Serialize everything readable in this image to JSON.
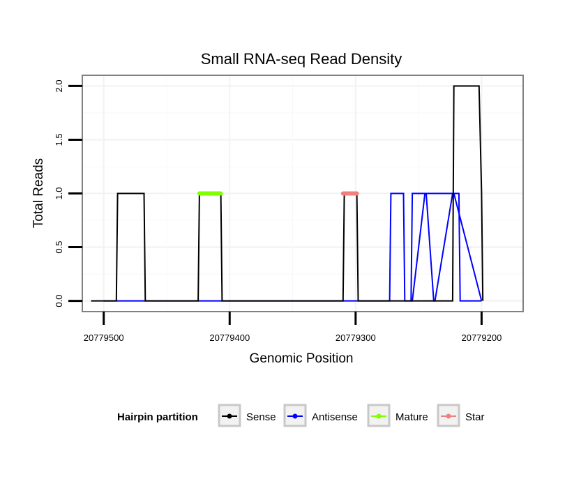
{
  "chart_data": {
    "type": "line",
    "title": "Small RNA-seq Read Density",
    "xlabel": "Genomic Position",
    "ylabel": "Total Reads",
    "x_reversed": true,
    "xlim": [
      20779517,
      20779167
    ],
    "ylim": [
      -0.1,
      2.1
    ],
    "x_ticks": [
      20779500,
      20779400,
      20779300,
      20779200
    ],
    "x_tick_labels": [
      "20779500",
      "20779400",
      "20779300",
      "20779200"
    ],
    "y_ticks": [
      0.0,
      0.5,
      1.0,
      1.5,
      2.0
    ],
    "y_tick_labels": [
      "0.0",
      "0.5",
      "1.0",
      "1.5",
      "2.0"
    ],
    "grid": true,
    "legend": {
      "title": "Hairpin partition",
      "position": "bottom",
      "entries": [
        {
          "label": "Sense",
          "color": "#000000"
        },
        {
          "label": "Antisense",
          "color": "#0000ff"
        },
        {
          "label": "Mature",
          "color": "#7fff00"
        },
        {
          "label": "Star",
          "color": "#f08080"
        }
      ]
    },
    "series": [
      {
        "name": "Antisense",
        "color": "#0000ff",
        "x": [
          20779500,
          20779273,
          20779272,
          20779262,
          20779261,
          20779256,
          20779255,
          20779218,
          20779217,
          20779200
        ],
        "y": [
          0,
          0,
          1,
          1,
          0,
          0,
          1,
          1,
          0,
          0
        ]
      },
      {
        "name": "Antisense",
        "color": "#0000ff",
        "x": [
          20779256,
          20779255,
          20779245,
          20779244,
          20779238,
          20779237,
          20779223,
          20779222,
          20779200
        ],
        "y": [
          0,
          0,
          1,
          1,
          0,
          0,
          1,
          1,
          0
        ]
      },
      {
        "name": "Sense",
        "color": "#000000",
        "x": [
          20779510,
          20779490,
          20779489,
          20779468,
          20779467,
          20779425,
          20779424,
          20779407,
          20779406,
          20779310,
          20779309,
          20779299,
          20779298,
          20779244,
          20779243,
          20779223,
          20779222,
          20779202,
          20779200,
          20779199
        ],
        "y": [
          0,
          0,
          1,
          1,
          0,
          0,
          1,
          1,
          0,
          0,
          1,
          1,
          0,
          0,
          0,
          0,
          2,
          2,
          1,
          0
        ]
      },
      {
        "name": "Mature",
        "color": "#7fff00",
        "x": [
          20779424,
          20779407
        ],
        "y": [
          1,
          1
        ]
      },
      {
        "name": "Star",
        "color": "#f08080",
        "x": [
          20779310,
          20779299
        ],
        "y": [
          1,
          1
        ]
      }
    ]
  }
}
